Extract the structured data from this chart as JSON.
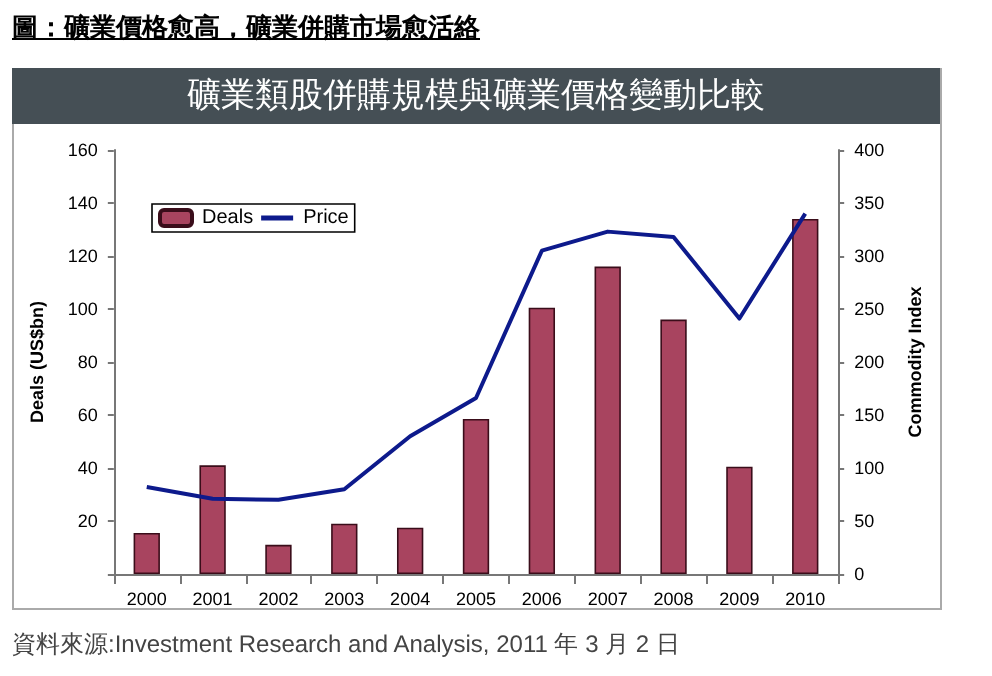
{
  "chart_data": {
    "type": "bar",
    "title": "圖：礦業價格愈高，礦業併購市場愈活絡",
    "subtitle": "礦業類股併購規模與礦業價格變動比較",
    "ylabel": "Deals (US$bn)",
    "y2label": "Commodity Index",
    "categories": [
      "2000",
      "2001",
      "2002",
      "2003",
      "2004",
      "2005",
      "2006",
      "2007",
      "2008",
      "2009",
      "2010"
    ],
    "series": [
      {
        "name": "Deals",
        "color": "#a8445f",
        "values": [
          15.5,
          41,
          11,
          19,
          17.5,
          58.5,
          100.5,
          116,
          96,
          40.5,
          134
        ]
      },
      {
        "name": "Price",
        "type": "line",
        "axis": "y2",
        "color": "#0d1a8c",
        "values": [
          82,
          71,
          70,
          80,
          130,
          166,
          305,
          323,
          318,
          241,
          340
        ]
      }
    ],
    "ylim": [
      0,
      160
    ],
    "yticks": [
      {
        "value": 0,
        "label": null
      },
      20,
      40,
      60,
      80,
      100,
      120,
      140,
      160
    ],
    "y2lim": [
      0,
      400
    ],
    "y2ticks": [
      0,
      50,
      100,
      150,
      200,
      250,
      300,
      350,
      400
    ],
    "grid": false,
    "legend": "top left",
    "marker": "none",
    "line_style": "solid",
    "annotations": [
      "資料來源:Investment Research and Analysis, 2011 年 3 月 2 日"
    ]
  }
}
